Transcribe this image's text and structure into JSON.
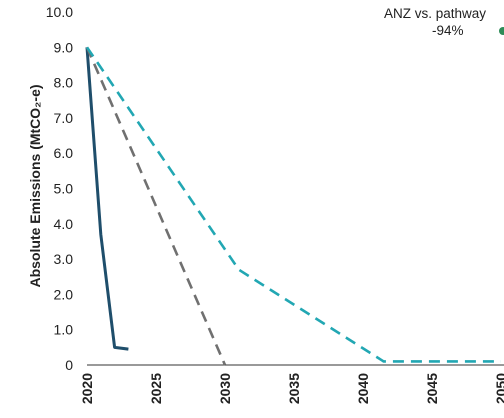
{
  "chart_data": {
    "type": "line",
    "ylabel": "Absolute Emissions (MtCO₂-e)",
    "ylim": [
      0,
      10
    ],
    "yticks": [
      "10.0",
      "9.0",
      "8.0",
      "7.0",
      "6.0",
      "5.0",
      "4.0",
      "3.0",
      "2.0",
      "1.0",
      "0"
    ],
    "xlim": [
      2020,
      2050
    ],
    "xticks": [
      "2020",
      "2025",
      "2030",
      "2035",
      "2040",
      "2045",
      "2050"
    ],
    "annotation": {
      "title": "ANZ vs. pathway",
      "value": "-94%"
    },
    "series": [
      {
        "color": "#1f4e6b",
        "dash": "solid",
        "points": [
          [
            2020,
            9.0
          ],
          [
            2021,
            3.7
          ],
          [
            2022,
            0.5
          ],
          [
            2023,
            0.45
          ]
        ]
      },
      {
        "color": "#707070",
        "dash": "dashed",
        "points": [
          [
            2020,
            9.0
          ],
          [
            2030,
            0.0
          ]
        ]
      },
      {
        "color": "#22a7b3",
        "dash": "dashed",
        "points": [
          [
            2020,
            9.0
          ],
          [
            2031,
            2.7
          ],
          [
            2041.5,
            0.1
          ],
          [
            2050,
            0.1
          ]
        ]
      }
    ],
    "annotation_color": "#2e8b57"
  }
}
